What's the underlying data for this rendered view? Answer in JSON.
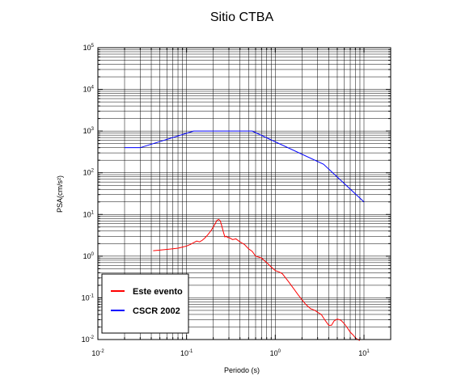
{
  "chart_data": {
    "type": "line",
    "title": "Sitio CTBA",
    "xlabel": "Periodo (s)",
    "ylabel": "PSA(cm/s²)",
    "xscale": "log",
    "yscale": "log",
    "xlim": [
      0.01,
      20
    ],
    "ylim": [
      0.01,
      100000
    ],
    "grid": true,
    "legend_placement": "bottom-left",
    "x_ticks": [
      {
        "base": "10",
        "exp": "-2"
      },
      {
        "base": "10",
        "exp": "-1"
      },
      {
        "base": "10",
        "exp": "0"
      },
      {
        "base": "10",
        "exp": "1"
      }
    ],
    "y_ticks": [
      {
        "base": "10",
        "exp": "-2"
      },
      {
        "base": "10",
        "exp": "-1"
      },
      {
        "base": "10",
        "exp": "0"
      },
      {
        "base": "10",
        "exp": "1"
      },
      {
        "base": "10",
        "exp": "2"
      },
      {
        "base": "10",
        "exp": "3"
      },
      {
        "base": "10",
        "exp": "4"
      },
      {
        "base": "10",
        "exp": "5"
      }
    ],
    "series": [
      {
        "name": "Este evento",
        "color": "#ff0000",
        "x": [
          0.042,
          0.05,
          0.06,
          0.07,
          0.08,
          0.09,
          0.1,
          0.11,
          0.12,
          0.13,
          0.14,
          0.15,
          0.16,
          0.17,
          0.18,
          0.19,
          0.2,
          0.21,
          0.22,
          0.23,
          0.24,
          0.25,
          0.26,
          0.27,
          0.28,
          0.29,
          0.3,
          0.33,
          0.36,
          0.4,
          0.45,
          0.5,
          0.55,
          0.6,
          0.65,
          0.7,
          0.8,
          0.9,
          1.0,
          1.1,
          1.2,
          1.4,
          1.6,
          1.8,
          2.0,
          2.2,
          2.5,
          2.8,
          3.0,
          3.3,
          3.6,
          4.0,
          4.3,
          4.6,
          5.0,
          5.5,
          6.0,
          6.5,
          7.0,
          7.5,
          8.0,
          8.5,
          9.0
        ],
        "y": [
          1.35,
          1.4,
          1.45,
          1.5,
          1.55,
          1.65,
          1.75,
          1.9,
          2.1,
          2.3,
          2.2,
          2.4,
          2.7,
          3.1,
          3.6,
          4.2,
          5.0,
          6.0,
          7.2,
          7.6,
          7.0,
          5.2,
          3.8,
          2.9,
          3.0,
          2.8,
          2.8,
          2.5,
          2.6,
          2.2,
          1.9,
          1.5,
          1.3,
          1.0,
          0.95,
          0.9,
          0.7,
          0.55,
          0.45,
          0.42,
          0.38,
          0.25,
          0.17,
          0.12,
          0.09,
          0.07,
          0.055,
          0.05,
          0.045,
          0.04,
          0.03,
          0.022,
          0.022,
          0.028,
          0.031,
          0.029,
          0.024,
          0.019,
          0.015,
          0.013,
          0.011,
          0.01,
          0.0095
        ]
      },
      {
        "name": "CSCR 2002",
        "color": "#0000ff",
        "x": [
          0.02,
          0.03,
          0.12,
          0.55,
          3.5,
          10
        ],
        "y": [
          400,
          400,
          1000,
          1000,
          160,
          20
        ]
      }
    ]
  }
}
